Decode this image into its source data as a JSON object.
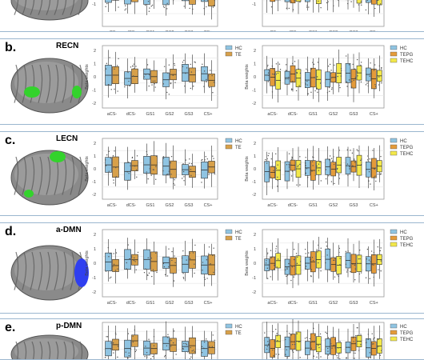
{
  "panels": [
    {
      "label": "",
      "network": "",
      "brain": "top",
      "y": -8,
      "h": 46,
      "legendLeft": [],
      "legendRight": [],
      "ticks": [
        "aCS-",
        "dCS-",
        "GS1",
        "GS2",
        "GS3",
        "CS+"
      ],
      "yticks": [
        "-1"
      ],
      "blob": "none"
    },
    {
      "label": "b.",
      "network": "RECN",
      "brain": "b",
      "y": 48,
      "h": 106,
      "legendLeft": [
        "HC",
        "TE"
      ],
      "legendRight": [
        "HC",
        "TEPG",
        "TEHC"
      ],
      "ticks": [
        "aCS-",
        "dCS-",
        "GS1",
        "GS2",
        "GS3",
        "CS+"
      ],
      "yticks": [
        "2",
        "1",
        "0",
        "-1",
        "-2"
      ],
      "blob": "green-sides"
    },
    {
      "label": "c.",
      "network": "LECN",
      "brain": "c",
      "y": 164,
      "h": 104,
      "legendLeft": [
        "HC",
        "TE"
      ],
      "legendRight": [
        "HC",
        "TEPG",
        "TEHC"
      ],
      "ticks": [
        "aCS-",
        "dCS-",
        "GS1",
        "GS2",
        "GS3",
        "CS+"
      ],
      "yticks": [
        "2",
        "1",
        "0",
        "-1",
        "-2"
      ],
      "blob": "green-top"
    },
    {
      "label": "d.",
      "network": "a-DMN",
      "brain": "d",
      "y": 278,
      "h": 112,
      "legendLeft": [
        "HC",
        "TE"
      ],
      "legendRight": [
        "HC",
        "TEPG",
        "TEHC"
      ],
      "ticks": [
        "aCS-",
        "dCS-",
        "GS1",
        "GS2",
        "GS3",
        "CS+"
      ],
      "yticks": [
        "2",
        "1",
        "0",
        "-1",
        "-2"
      ],
      "blob": "blue-front"
    },
    {
      "label": "e.",
      "network": "p-DMN",
      "brain": "e",
      "y": 398,
      "h": 50,
      "legendLeft": [
        "HC",
        "TE"
      ],
      "legendRight": [
        "HC",
        "TEPG",
        "TEHC"
      ],
      "ticks": [],
      "yticks": [],
      "blob": "none"
    }
  ],
  "ylabel": "Beta weights",
  "colors": {
    "hc": "#8fc4e2",
    "te": "#d7a04a",
    "tepg": "#e49b3a",
    "tehc": "#f3e84a",
    "border": "#9bb6cf"
  }
}
